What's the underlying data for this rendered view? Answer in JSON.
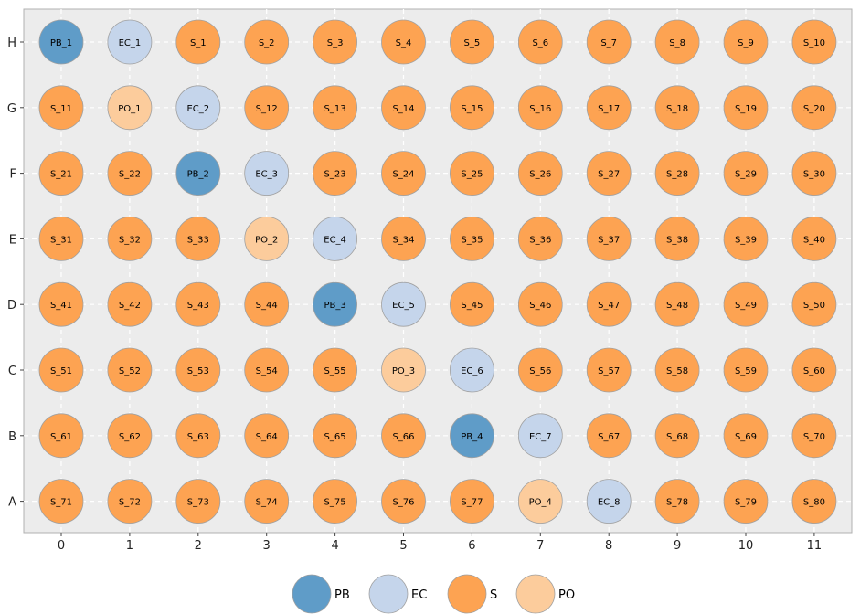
{
  "chart_data": {
    "type": "scatter",
    "title": "",
    "xlabel": "",
    "ylabel": "",
    "x_ticks": [
      "0",
      "1",
      "2",
      "3",
      "4",
      "5",
      "6",
      "7",
      "8",
      "9",
      "10",
      "11"
    ],
    "y_ticks": [
      "A",
      "B",
      "C",
      "D",
      "E",
      "F",
      "G",
      "H"
    ],
    "xlim": [
      -0.55,
      11.55
    ],
    "grid": true,
    "legend_position": "bottom-center",
    "colors": {
      "PB": "#5f9cc8",
      "EC": "#c5d5eb",
      "S": "#fda352",
      "PO": "#fccc9c",
      "plot_background": "#ececec",
      "marker_edge": "#a0a0a0"
    },
    "legend": [
      "PB",
      "EC",
      "S",
      "PO"
    ],
    "series": [
      {
        "name": "PB",
        "points": [
          {
            "label": "PB_1",
            "x": 0,
            "y": "H"
          },
          {
            "label": "PB_2",
            "x": 2,
            "y": "F"
          },
          {
            "label": "PB_3",
            "x": 4,
            "y": "D"
          },
          {
            "label": "PB_4",
            "x": 6,
            "y": "B"
          }
        ]
      },
      {
        "name": "EC",
        "points": [
          {
            "label": "EC_1",
            "x": 1,
            "y": "H"
          },
          {
            "label": "EC_2",
            "x": 2,
            "y": "G"
          },
          {
            "label": "EC_3",
            "x": 3,
            "y": "F"
          },
          {
            "label": "EC_4",
            "x": 4,
            "y": "E"
          },
          {
            "label": "EC_5",
            "x": 5,
            "y": "D"
          },
          {
            "label": "EC_6",
            "x": 6,
            "y": "C"
          },
          {
            "label": "EC_7",
            "x": 7,
            "y": "B"
          },
          {
            "label": "EC_8",
            "x": 8,
            "y": "A"
          }
        ]
      },
      {
        "name": "S",
        "points": [
          {
            "label": "S_1",
            "x": 2,
            "y": "H"
          },
          {
            "label": "S_2",
            "x": 3,
            "y": "H"
          },
          {
            "label": "S_3",
            "x": 4,
            "y": "H"
          },
          {
            "label": "S_4",
            "x": 5,
            "y": "H"
          },
          {
            "label": "S_5",
            "x": 6,
            "y": "H"
          },
          {
            "label": "S_6",
            "x": 7,
            "y": "H"
          },
          {
            "label": "S_7",
            "x": 8,
            "y": "H"
          },
          {
            "label": "S_8",
            "x": 9,
            "y": "H"
          },
          {
            "label": "S_9",
            "x": 10,
            "y": "H"
          },
          {
            "label": "S_10",
            "x": 11,
            "y": "H"
          },
          {
            "label": "S_11",
            "x": 0,
            "y": "G"
          },
          {
            "label": "S_12",
            "x": 3,
            "y": "G"
          },
          {
            "label": "S_13",
            "x": 4,
            "y": "G"
          },
          {
            "label": "S_14",
            "x": 5,
            "y": "G"
          },
          {
            "label": "S_15",
            "x": 6,
            "y": "G"
          },
          {
            "label": "S_16",
            "x": 7,
            "y": "G"
          },
          {
            "label": "S_17",
            "x": 8,
            "y": "G"
          },
          {
            "label": "S_18",
            "x": 9,
            "y": "G"
          },
          {
            "label": "S_19",
            "x": 10,
            "y": "G"
          },
          {
            "label": "S_20",
            "x": 11,
            "y": "G"
          },
          {
            "label": "S_21",
            "x": 0,
            "y": "F"
          },
          {
            "label": "S_22",
            "x": 1,
            "y": "F"
          },
          {
            "label": "S_23",
            "x": 4,
            "y": "F"
          },
          {
            "label": "S_24",
            "x": 5,
            "y": "F"
          },
          {
            "label": "S_25",
            "x": 6,
            "y": "F"
          },
          {
            "label": "S_26",
            "x": 7,
            "y": "F"
          },
          {
            "label": "S_27",
            "x": 8,
            "y": "F"
          },
          {
            "label": "S_28",
            "x": 9,
            "y": "F"
          },
          {
            "label": "S_29",
            "x": 10,
            "y": "F"
          },
          {
            "label": "S_30",
            "x": 11,
            "y": "F"
          },
          {
            "label": "S_31",
            "x": 0,
            "y": "E"
          },
          {
            "label": "S_32",
            "x": 1,
            "y": "E"
          },
          {
            "label": "S_33",
            "x": 2,
            "y": "E"
          },
          {
            "label": "S_34",
            "x": 5,
            "y": "E"
          },
          {
            "label": "S_35",
            "x": 6,
            "y": "E"
          },
          {
            "label": "S_36",
            "x": 7,
            "y": "E"
          },
          {
            "label": "S_37",
            "x": 8,
            "y": "E"
          },
          {
            "label": "S_38",
            "x": 9,
            "y": "E"
          },
          {
            "label": "S_39",
            "x": 10,
            "y": "E"
          },
          {
            "label": "S_40",
            "x": 11,
            "y": "E"
          },
          {
            "label": "S_41",
            "x": 0,
            "y": "D"
          },
          {
            "label": "S_42",
            "x": 1,
            "y": "D"
          },
          {
            "label": "S_43",
            "x": 2,
            "y": "D"
          },
          {
            "label": "S_44",
            "x": 3,
            "y": "D"
          },
          {
            "label": "S_45",
            "x": 6,
            "y": "D"
          },
          {
            "label": "S_46",
            "x": 7,
            "y": "D"
          },
          {
            "label": "S_47",
            "x": 8,
            "y": "D"
          },
          {
            "label": "S_48",
            "x": 9,
            "y": "D"
          },
          {
            "label": "S_49",
            "x": 10,
            "y": "D"
          },
          {
            "label": "S_50",
            "x": 11,
            "y": "D"
          },
          {
            "label": "S_51",
            "x": 0,
            "y": "C"
          },
          {
            "label": "S_52",
            "x": 1,
            "y": "C"
          },
          {
            "label": "S_53",
            "x": 2,
            "y": "C"
          },
          {
            "label": "S_54",
            "x": 3,
            "y": "C"
          },
          {
            "label": "S_55",
            "x": 4,
            "y": "C"
          },
          {
            "label": "S_56",
            "x": 7,
            "y": "C"
          },
          {
            "label": "S_57",
            "x": 8,
            "y": "C"
          },
          {
            "label": "S_58",
            "x": 9,
            "y": "C"
          },
          {
            "label": "S_59",
            "x": 10,
            "y": "C"
          },
          {
            "label": "S_60",
            "x": 11,
            "y": "C"
          },
          {
            "label": "S_61",
            "x": 0,
            "y": "B"
          },
          {
            "label": "S_62",
            "x": 1,
            "y": "B"
          },
          {
            "label": "S_63",
            "x": 2,
            "y": "B"
          },
          {
            "label": "S_64",
            "x": 3,
            "y": "B"
          },
          {
            "label": "S_65",
            "x": 4,
            "y": "B"
          },
          {
            "label": "S_66",
            "x": 5,
            "y": "B"
          },
          {
            "label": "S_67",
            "x": 8,
            "y": "B"
          },
          {
            "label": "S_68",
            "x": 9,
            "y": "B"
          },
          {
            "label": "S_69",
            "x": 10,
            "y": "B"
          },
          {
            "label": "S_70",
            "x": 11,
            "y": "B"
          },
          {
            "label": "S_71",
            "x": 0,
            "y": "A"
          },
          {
            "label": "S_72",
            "x": 1,
            "y": "A"
          },
          {
            "label": "S_73",
            "x": 2,
            "y": "A"
          },
          {
            "label": "S_74",
            "x": 3,
            "y": "A"
          },
          {
            "label": "S_75",
            "x": 4,
            "y": "A"
          },
          {
            "label": "S_76",
            "x": 5,
            "y": "A"
          },
          {
            "label": "S_77",
            "x": 6,
            "y": "A"
          },
          {
            "label": "S_78",
            "x": 9,
            "y": "A"
          },
          {
            "label": "S_79",
            "x": 10,
            "y": "A"
          },
          {
            "label": "S_80",
            "x": 11,
            "y": "A"
          }
        ]
      },
      {
        "name": "PO",
        "points": [
          {
            "label": "PO_1",
            "x": 1,
            "y": "G"
          },
          {
            "label": "PO_2",
            "x": 3,
            "y": "E"
          },
          {
            "label": "PO_3",
            "x": 5,
            "y": "C"
          },
          {
            "label": "PO_4",
            "x": 7,
            "y": "A"
          }
        ]
      }
    ]
  }
}
